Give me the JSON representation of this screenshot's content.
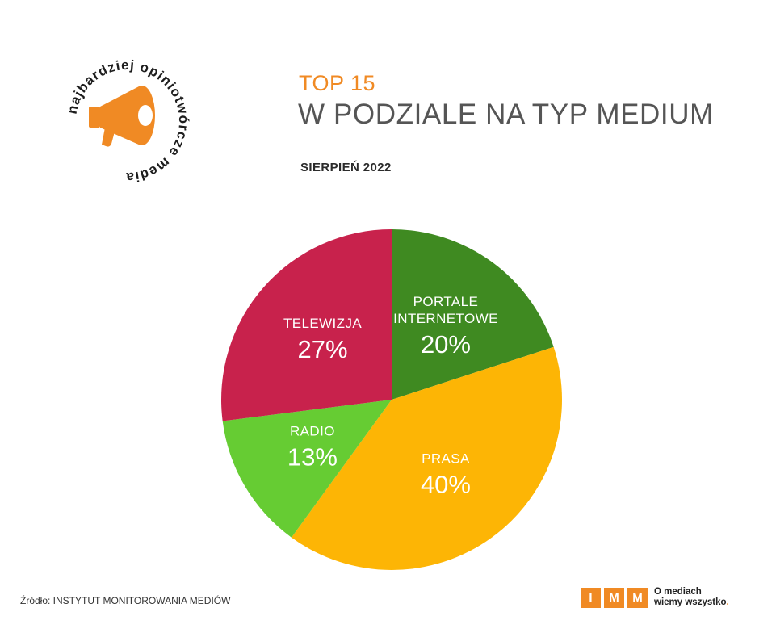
{
  "header": {
    "title_top": "TOP 15",
    "title_main": "W PODZIALE NA TYP MEDIUM",
    "date": "SIERPIEŃ 2022"
  },
  "badge": {
    "ring_text": "najbardziej opiniotwórcze media",
    "icon": "megaphone-icon",
    "color": "#f08a24"
  },
  "chart_data": {
    "type": "pie",
    "title": "W PODZIALE NA TYP MEDIUM",
    "start_angle_deg": 0,
    "direction": "clockwise",
    "slices": [
      {
        "label": [
          "PORTALE",
          "INTERNETOWE"
        ],
        "value": 20,
        "value_label": "20%",
        "color": "#3f8a21"
      },
      {
        "label": [
          "PRASA"
        ],
        "value": 40,
        "value_label": "40%",
        "color": "#fdb505"
      },
      {
        "label": [
          "RADIO"
        ],
        "value": 13,
        "value_label": "13%",
        "color": "#66cc33"
      },
      {
        "label": [
          "TELEWIZJA"
        ],
        "value": 27,
        "value_label": "27%",
        "color": "#c8224c"
      }
    ]
  },
  "footer": {
    "source": "Źródło: INSTYTUT MONITOROWANIA MEDIÓW",
    "logo_letters": [
      "I",
      "M",
      "M"
    ],
    "logo_text_line1": "O mediach",
    "logo_text_line2": "wiemy wszystko",
    "logo_text_dot": ".",
    "logo_color": "#f08a24"
  }
}
